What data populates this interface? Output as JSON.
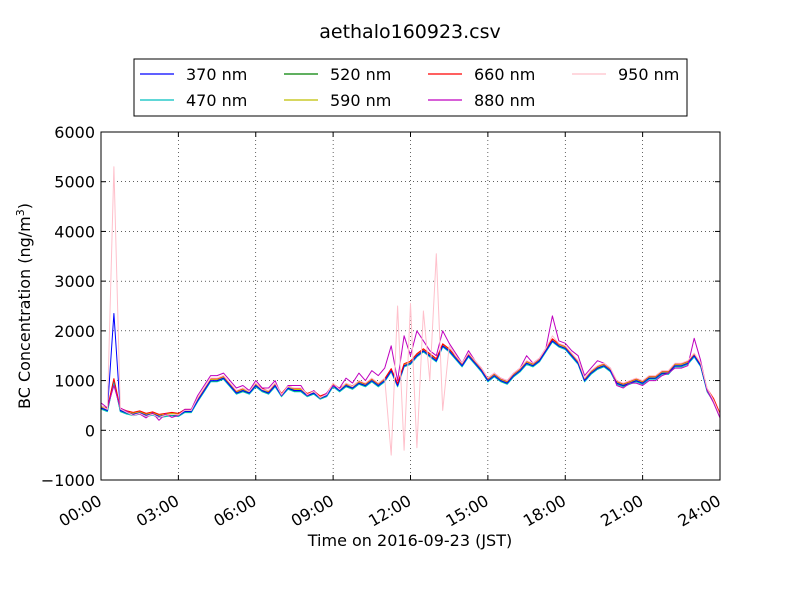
{
  "chart_data": {
    "type": "line",
    "title": "aethalo160923.csv",
    "xlabel": "Time on 2016-09-23 (JST)",
    "ylabel_main": "BC Concentration (ng/m",
    "ylabel_sup": "3",
    "ylabel_close": ")",
    "xlim": [
      0,
      24
    ],
    "ylim": [
      -1000,
      6000
    ],
    "x_ticks": [
      0,
      3,
      6,
      9,
      12,
      15,
      18,
      21,
      24
    ],
    "x_tick_labels": [
      "00:00",
      "03:00",
      "06:00",
      "09:00",
      "12:00",
      "15:00",
      "18:00",
      "21:00",
      "24:00"
    ],
    "y_ticks": [
      -1000,
      0,
      1000,
      2000,
      3000,
      4000,
      5000,
      6000
    ],
    "y_tick_labels": [
      "−1000",
      "0",
      "1000",
      "2000",
      "3000",
      "4000",
      "5000",
      "6000"
    ],
    "grid": true,
    "legend_position": "top, above plot",
    "series": [
      {
        "name": "370 nm",
        "color": "#0000ff"
      },
      {
        "name": "470 nm",
        "color": "#00bfbf"
      },
      {
        "name": "520 nm",
        "color": "#008000"
      },
      {
        "name": "590 nm",
        "color": "#bfbf00"
      },
      {
        "name": "660 nm",
        "color": "#ff0000"
      },
      {
        "name": "880 nm",
        "color": "#bf00bf"
      },
      {
        "name": "950 nm",
        "color": "#ffc0cb"
      }
    ],
    "x": [
      0.0,
      0.25,
      0.5,
      0.75,
      1.0,
      1.25,
      1.5,
      1.75,
      2.0,
      2.25,
      2.5,
      2.75,
      3.0,
      3.25,
      3.5,
      3.75,
      4.0,
      4.25,
      4.5,
      4.75,
      5.0,
      5.25,
      5.5,
      5.75,
      6.0,
      6.25,
      6.5,
      6.75,
      7.0,
      7.25,
      7.5,
      7.75,
      8.0,
      8.25,
      8.5,
      8.75,
      9.0,
      9.25,
      9.5,
      9.75,
      10.0,
      10.25,
      10.5,
      10.75,
      11.0,
      11.25,
      11.5,
      11.75,
      12.0,
      12.25,
      12.5,
      12.75,
      13.0,
      13.25,
      13.5,
      13.75,
      14.0,
      14.25,
      14.5,
      14.75,
      15.0,
      15.25,
      15.5,
      15.75,
      16.0,
      16.25,
      16.5,
      16.75,
      17.0,
      17.25,
      17.5,
      17.75,
      18.0,
      18.25,
      18.5,
      18.75,
      19.0,
      19.25,
      19.5,
      19.75,
      20.0,
      20.25,
      20.5,
      20.75,
      21.0,
      21.25,
      21.5,
      21.75,
      22.0,
      22.25,
      22.5,
      22.75,
      23.0,
      23.25,
      23.5,
      23.75,
      24.0
    ],
    "values": {
      "base": [
        450,
        400,
        1000,
        400,
        350,
        320,
        350,
        300,
        330,
        280,
        300,
        320,
        300,
        380,
        380,
        600,
        800,
        1000,
        1000,
        1050,
        900,
        750,
        800,
        750,
        900,
        800,
        750,
        900,
        700,
        850,
        800,
        800,
        700,
        750,
        650,
        700,
        900,
        800,
        900,
        850,
        950,
        900,
        1000,
        900,
        1000,
        1200,
        900,
        1300,
        1350,
        1500,
        1600,
        1500,
        1400,
        1700,
        1600,
        1450,
        1300,
        1500,
        1350,
        1200,
        1000,
        1100,
        1000,
        950,
        1100,
        1200,
        1350,
        1300,
        1400,
        1600,
        1800,
        1700,
        1650,
        1500,
        1350,
        1000,
        1150,
        1250,
        1300,
        1200,
        950,
        900,
        950,
        1000,
        950,
        1050,
        1050,
        1150,
        1150,
        1300,
        1300,
        1350,
        1500,
        1300,
        800,
        600,
        300,
        350,
        500
      ],
      "s370": [
        450,
        400,
        2350,
        400,
        350,
        320,
        350,
        300,
        330,
        280,
        300,
        320,
        300,
        380,
        380,
        600,
        800,
        1000,
        1000,
        1050,
        900,
        750,
        800,
        750,
        900,
        800,
        750,
        900,
        700,
        850,
        800,
        800,
        700,
        750,
        650,
        700,
        900,
        800,
        900,
        850,
        950,
        900,
        1000,
        900,
        1000,
        1200,
        900,
        1300,
        1350,
        1500,
        1600,
        1500,
        1400,
        1700,
        1600,
        1450,
        1300,
        1500,
        1350,
        1200,
        1000,
        1100,
        1000,
        950,
        1100,
        1200,
        1350,
        1300,
        1400,
        1600,
        1800,
        1700,
        1650,
        1500,
        1350,
        1000,
        1150,
        1250,
        1300,
        1200,
        950,
        900,
        950,
        1000,
        950,
        1050,
        1050,
        1150,
        1150,
        1300,
        1300,
        1350,
        1500,
        1300,
        800,
        600,
        300,
        350,
        500
      ],
      "s880": [
        550,
        450,
        900,
        450,
        380,
        300,
        330,
        250,
        350,
        200,
        330,
        260,
        300,
        420,
        420,
        700,
        900,
        1100,
        1100,
        1150,
        1000,
        850,
        900,
        800,
        1000,
        850,
        850,
        1000,
        700,
        900,
        900,
        900,
        700,
        800,
        650,
        750,
        900,
        850,
        1050,
        950,
        1150,
        1000,
        1200,
        1100,
        1250,
        1700,
        1000,
        1900,
        1500,
        2000,
        1800,
        1600,
        1500,
        2000,
        1750,
        1550,
        1350,
        1600,
        1400,
        1250,
        1050,
        1150,
        1050,
        1000,
        1150,
        1250,
        1500,
        1350,
        1450,
        1650,
        2300,
        1800,
        1750,
        1600,
        1500,
        1100,
        1250,
        1400,
        1350,
        1250,
        900,
        850,
        950,
        950,
        900,
        1000,
        1000,
        1100,
        1150,
        1250,
        1250,
        1300,
        1850,
        1400,
        800,
        550,
        250,
        300,
        600
      ],
      "s950": [
        500,
        420,
        5300,
        430,
        360,
        300,
        340,
        280,
        320,
        260,
        300,
        320,
        310,
        400,
        400,
        650,
        850,
        1050,
        1050,
        1100,
        950,
        800,
        850,
        780,
        950,
        820,
        800,
        950,
        720,
        880,
        850,
        850,
        720,
        780,
        660,
        720,
        950,
        820,
        950,
        880,
        1000,
        950,
        1050,
        950,
        1050,
        -500,
        2500,
        -400,
        2550,
        -350,
        2400,
        1000,
        3550,
        400,
        1700,
        1500,
        1350,
        1550,
        1400,
        1250,
        1050,
        1150,
        1050,
        1000,
        1150,
        1250,
        1400,
        1350,
        1450,
        1650,
        1900,
        1750,
        1700,
        1550,
        1400,
        1050,
        1200,
        1300,
        1350,
        1250,
        1000,
        950,
        1000,
        1050,
        1000,
        1100,
        1100,
        1200,
        1200,
        1350,
        1350,
        1400,
        1550,
        1350,
        850,
        600,
        300,
        350,
        550
      ]
    }
  }
}
